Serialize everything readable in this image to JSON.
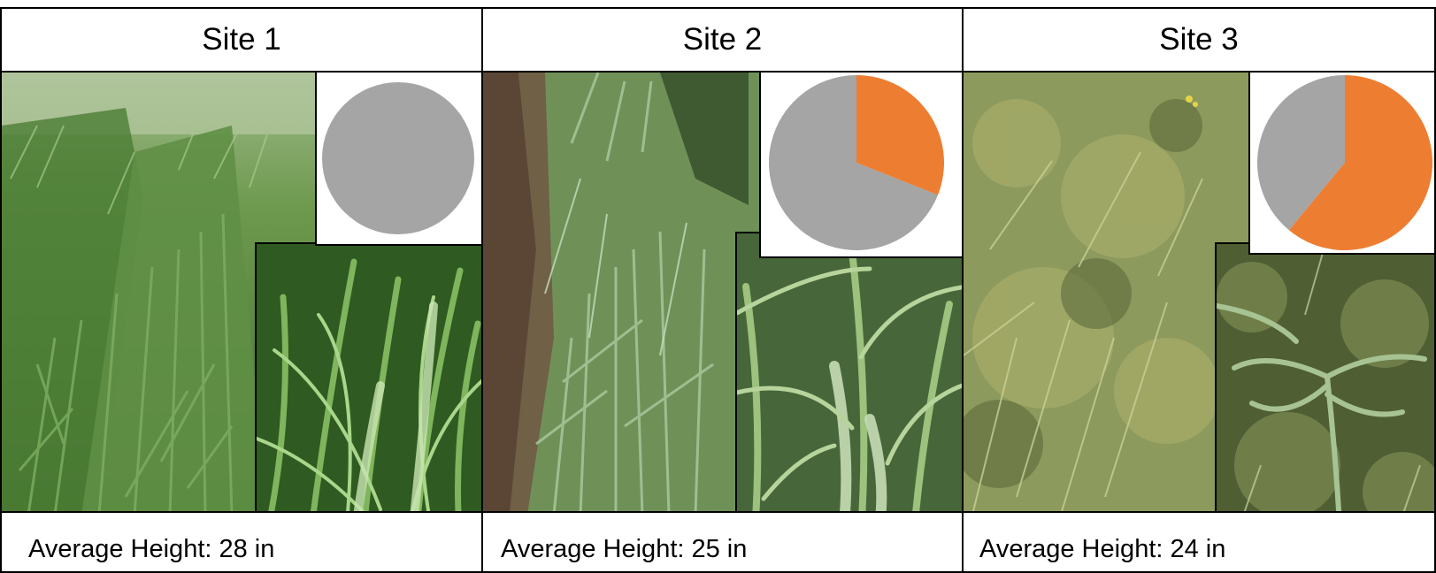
{
  "sites": [
    {
      "title": "Site 1",
      "average_height": "Average Height: 28 in",
      "pie": {
        "orange_fraction": 0.0,
        "gray_fraction": 1.0
      }
    },
    {
      "title": "Site 2",
      "average_height": "Average Height: 25 in",
      "pie": {
        "orange_fraction": 0.31,
        "gray_fraction": 0.69
      }
    },
    {
      "title": "Site 3",
      "average_height": "Average Height: 24 in",
      "pie": {
        "orange_fraction": 0.61,
        "gray_fraction": 0.39
      }
    }
  ],
  "colors": {
    "orange": "#ED7D31",
    "gray": "#A5A5A5"
  }
}
